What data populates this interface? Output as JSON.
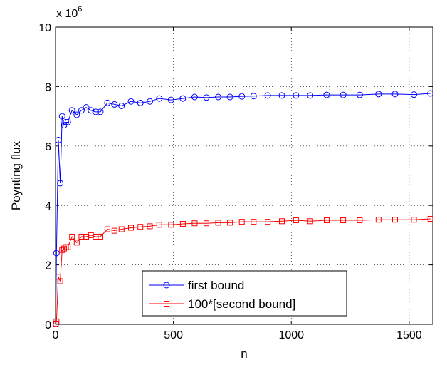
{
  "chart_data": {
    "type": "line",
    "xlabel": "n",
    "ylabel": "Poynting flux",
    "y_multiplier_label": {
      "base": "x 10",
      "exponent": "6"
    },
    "xlim": [
      0,
      1600
    ],
    "ylim": [
      0,
      10
    ],
    "xticks": [
      0,
      500,
      1000,
      1500
    ],
    "yticks": [
      0,
      2,
      4,
      6,
      8,
      10
    ],
    "grid": true,
    "legend_position": "bottom-center",
    "series": [
      {
        "name": "first bound",
        "color": "#0000ff",
        "marker": "circle",
        "x": [
          1,
          4,
          12,
          20,
          28,
          36,
          44,
          52,
          70,
          90,
          110,
          130,
          150,
          170,
          190,
          220,
          250,
          280,
          320,
          360,
          400,
          440,
          490,
          540,
          590,
          640,
          690,
          740,
          790,
          840,
          900,
          960,
          1020,
          1080,
          1150,
          1220,
          1290,
          1370,
          1440,
          1520,
          1590
        ],
        "y": [
          0.02,
          2.4,
          6.2,
          4.75,
          7.0,
          6.7,
          6.8,
          6.8,
          7.2,
          7.05,
          7.2,
          7.3,
          7.2,
          7.15,
          7.15,
          7.45,
          7.4,
          7.35,
          7.5,
          7.45,
          7.5,
          7.6,
          7.55,
          7.6,
          7.65,
          7.63,
          7.65,
          7.65,
          7.67,
          7.68,
          7.7,
          7.7,
          7.7,
          7.7,
          7.72,
          7.72,
          7.72,
          7.75,
          7.75,
          7.73,
          7.77
        ]
      },
      {
        "name": "100*[second bound]",
        "color": "#ff0000",
        "marker": "square",
        "x": [
          1,
          4,
          12,
          20,
          28,
          36,
          44,
          52,
          70,
          90,
          110,
          130,
          150,
          170,
          190,
          220,
          250,
          280,
          320,
          360,
          400,
          440,
          490,
          540,
          590,
          640,
          690,
          740,
          790,
          840,
          900,
          960,
          1020,
          1080,
          1150,
          1220,
          1290,
          1370,
          1440,
          1520,
          1590
        ],
        "y": [
          0.02,
          0.1,
          1.6,
          1.45,
          2.5,
          2.55,
          2.6,
          2.6,
          2.95,
          2.75,
          2.95,
          2.95,
          3.0,
          2.95,
          2.95,
          3.2,
          3.15,
          3.2,
          3.25,
          3.28,
          3.3,
          3.35,
          3.35,
          3.38,
          3.4,
          3.4,
          3.42,
          3.42,
          3.45,
          3.45,
          3.45,
          3.47,
          3.5,
          3.47,
          3.5,
          3.5,
          3.5,
          3.52,
          3.52,
          3.52,
          3.55
        ]
      }
    ]
  }
}
